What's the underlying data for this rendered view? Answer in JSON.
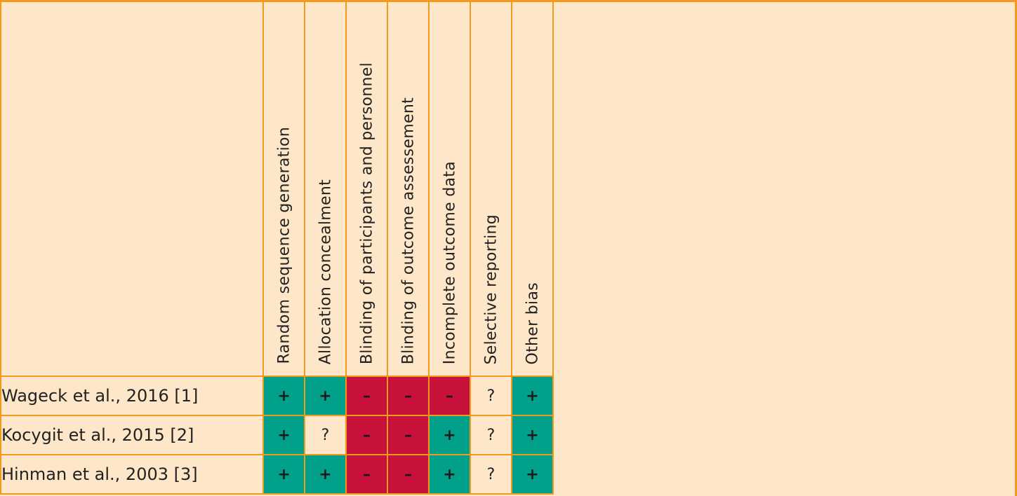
{
  "columns": [
    "Random sequence generation",
    "Allocation concealment",
    "Blinding of participants and personnel",
    "Blinding of outcome assessement",
    "Incomplete outcome data",
    "Selective reporting",
    "Other bias"
  ],
  "rows": [
    {
      "study": "Wageck et al., 2016 [1]",
      "ratings": [
        "+",
        "+",
        "–",
        "–",
        "–",
        "?",
        "+"
      ]
    },
    {
      "study": "Kocygit et al., 2015 [2]",
      "ratings": [
        "+",
        "?",
        "–",
        "–",
        "+",
        "?",
        "+"
      ]
    },
    {
      "study": "Hinman et al., 2003 [3]",
      "ratings": [
        "+",
        "+",
        "–",
        "–",
        "+",
        "?",
        "+"
      ]
    }
  ],
  "colors": {
    "low_risk": "#00a08a",
    "high_risk": "#c9123b",
    "unclear_risk": "#fde7c8",
    "grid": "#f39a1c",
    "background": "#fde7c8"
  }
}
